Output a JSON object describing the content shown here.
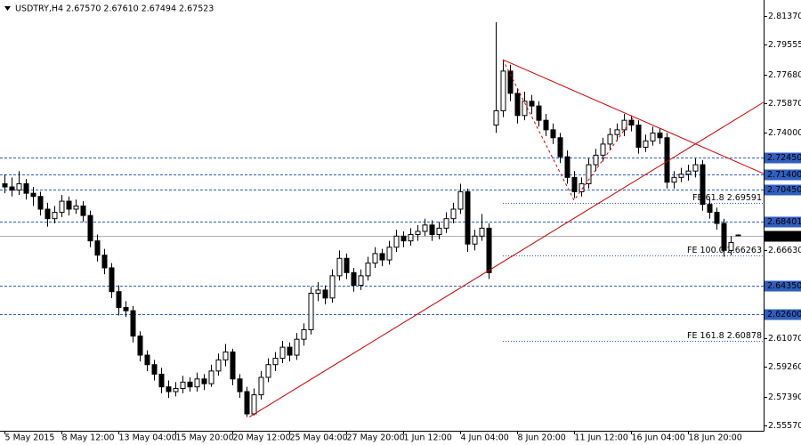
{
  "chart_data": {
    "type": "candlestick",
    "title": "USDTRY,H4  2.67570 2.67610 2.67494 2.67523",
    "bull_color": "#ffffff",
    "bear_color": "#000000",
    "edge_color": "#000000",
    "xlim": [
      -0.625,
      106.625
    ],
    "ylim": [
      2.55234,
      2.8238
    ],
    "xticks": [
      {
        "value": 0,
        "label": "5 May 2015"
      },
      {
        "value": 8,
        "label": "8 May 12:00"
      },
      {
        "value": 16,
        "label": "13 May 04:00"
      },
      {
        "value": 24,
        "label": "15 May 20:00"
      },
      {
        "value": 32,
        "label": "20 May 12:00"
      },
      {
        "value": 40,
        "label": "25 May 04:00"
      },
      {
        "value": 48,
        "label": "27 May 20:00"
      },
      {
        "value": 56,
        "label": "1 Jun 12:00"
      },
      {
        "value": 64,
        "label": "4 Jun 04:00"
      },
      {
        "value": 72,
        "label": "8 Jun 20:00"
      },
      {
        "value": 80,
        "label": "11 Jun 12:00"
      },
      {
        "value": 88,
        "label": "16 Jun 04:00"
      },
      {
        "value": 96,
        "label": "18 Jun 20:00"
      }
    ],
    "yticks": [
      {
        "value": 2.8137,
        "label": "2.81370"
      },
      2.79555,
      {
        "value": 2.7768,
        "label": "2.77680"
      },
      {
        "value": 2.7587,
        "label": "2.75870"
      },
      {
        "value": 2.74,
        "label": "2.74000"
      },
      {
        "value": 2.6663,
        "label": "2.66630"
      },
      {
        "value": 2.6107,
        "label": "2.61070"
      },
      {
        "value": 2.5926,
        "label": "2.59260"
      },
      {
        "value": 2.5739,
        "label": "2.57390"
      },
      {
        "value": 2.5557,
        "label": "2.55570"
      }
    ],
    "levels": [
      {
        "value": 2.7245,
        "label": "2.72450",
        "color": "#2f5fbf"
      },
      {
        "value": 2.714,
        "label": "2.71400",
        "color": "#2f5fbf"
      },
      {
        "value": 2.7045,
        "label": "2.70450",
        "color": "#2f5fbf"
      },
      {
        "value": 2.68401,
        "label": "2.68401",
        "color": "#2f5fbf"
      },
      {
        "value": 2.67523,
        "label": "2.67523",
        "color": "#000000"
      },
      {
        "value": 2.6435,
        "label": "2.64350",
        "color": "#2f5fbf"
      },
      {
        "value": 2.626,
        "label": "2.62600",
        "color": "#2f5fbf"
      }
    ],
    "annotations": [
      {
        "value": 2.69591,
        "label": "FE 61.8 2.69591"
      },
      {
        "value": 2.66263,
        "label": "FE 100.0 2.66263"
      },
      {
        "value": 2.60878,
        "label": "FE 161.8 2.60878"
      }
    ],
    "annotation_start": 70,
    "trend_lines": [
      {
        "points": [
          [
            34.4,
            2.561
          ],
          [
            106.6,
            2.7593
          ]
        ],
        "dashed": false,
        "color": "#d40000"
      },
      {
        "points": [
          [
            70,
            2.7862
          ],
          [
            106.6,
            2.7144
          ]
        ],
        "dashed": false,
        "color": "#d40000"
      },
      {
        "points": [
          [
            70,
            2.7862
          ],
          [
            80,
            2.6976
          ],
          [
            88.5,
            2.7509
          ]
        ],
        "dashed": true,
        "color": "#d40000"
      }
    ],
    "ohlc": [
      [
        2.708,
        2.714,
        2.702,
        2.706
      ],
      [
        2.706,
        2.712,
        2.7,
        2.704
      ],
      [
        2.704,
        2.716,
        2.701,
        2.708
      ],
      [
        2.708,
        2.711,
        2.698,
        2.702
      ],
      [
        2.702,
        2.706,
        2.694,
        2.7
      ],
      [
        2.7,
        2.703,
        2.688,
        2.692
      ],
      [
        2.692,
        2.696,
        2.681,
        2.686
      ],
      [
        2.686,
        2.694,
        2.683,
        2.69
      ],
      [
        2.69,
        2.701,
        2.687,
        2.697
      ],
      [
        2.697,
        2.7,
        2.688,
        2.692
      ],
      [
        2.692,
        2.698,
        2.689,
        2.694
      ],
      [
        2.694,
        2.697,
        2.684,
        2.688
      ],
      [
        2.688,
        2.691,
        2.668,
        2.672
      ],
      [
        2.672,
        2.676,
        2.659,
        2.663
      ],
      [
        2.663,
        2.667,
        2.651,
        2.655
      ],
      [
        2.655,
        2.658,
        2.636,
        2.64
      ],
      [
        2.64,
        2.644,
        2.625,
        2.63
      ],
      [
        2.63,
        2.634,
        2.624,
        2.628
      ],
      [
        2.628,
        2.631,
        2.608,
        2.612
      ],
      [
        2.612,
        2.615,
        2.596,
        2.6
      ],
      [
        2.6,
        2.603,
        2.59,
        2.594
      ],
      [
        2.594,
        2.597,
        2.584,
        2.588
      ],
      [
        2.588,
        2.592,
        2.576,
        2.58
      ],
      [
        2.58,
        2.584,
        2.573,
        2.577
      ],
      [
        2.577,
        2.583,
        2.574,
        2.579
      ],
      [
        2.579,
        2.587,
        2.576,
        2.583
      ],
      [
        2.583,
        2.586,
        2.577,
        2.58
      ],
      [
        2.58,
        2.589,
        2.577,
        2.585
      ],
      [
        2.585,
        2.588,
        2.578,
        2.582
      ],
      [
        2.582,
        2.594,
        2.58,
        2.59
      ],
      [
        2.59,
        2.601,
        2.587,
        2.597
      ],
      [
        2.597,
        2.607,
        2.593,
        2.602
      ],
      [
        2.602,
        2.604,
        2.581,
        2.585
      ],
      [
        2.585,
        2.588,
        2.573,
        2.577
      ],
      [
        2.577,
        2.58,
        2.561,
        2.563
      ],
      [
        2.563,
        2.579,
        2.562,
        2.575
      ],
      [
        2.575,
        2.59,
        2.572,
        2.586
      ],
      [
        2.586,
        2.598,
        2.583,
        2.594
      ],
      [
        2.594,
        2.602,
        2.59,
        2.598
      ],
      [
        2.598,
        2.609,
        2.595,
        2.605
      ],
      [
        2.605,
        2.608,
        2.596,
        2.6
      ],
      [
        2.6,
        2.614,
        2.597,
        2.61
      ],
      [
        2.61,
        2.62,
        2.606,
        2.616
      ],
      [
        2.616,
        2.643,
        2.613,
        2.639
      ],
      [
        2.639,
        2.646,
        2.634,
        2.641
      ],
      [
        2.641,
        2.644,
        2.632,
        2.636
      ],
      [
        2.636,
        2.654,
        2.633,
        2.65
      ],
      [
        2.65,
        2.666,
        2.647,
        2.661
      ],
      [
        2.661,
        2.664,
        2.648,
        2.652
      ],
      [
        2.652,
        2.655,
        2.64,
        2.644
      ],
      [
        2.644,
        2.654,
        2.641,
        2.65
      ],
      [
        2.65,
        2.662,
        2.647,
        2.658
      ],
      [
        2.658,
        2.668,
        2.655,
        2.664
      ],
      [
        2.664,
        2.667,
        2.656,
        2.66
      ],
      [
        2.66,
        2.672,
        2.657,
        2.668
      ],
      [
        2.668,
        2.679,
        2.665,
        2.675
      ],
      [
        2.675,
        2.678,
        2.668,
        2.672
      ],
      [
        2.672,
        2.68,
        2.669,
        2.676
      ],
      [
        2.676,
        2.682,
        2.672,
        2.678
      ],
      [
        2.678,
        2.686,
        2.675,
        2.682
      ],
      [
        2.682,
        2.685,
        2.672,
        2.676
      ],
      [
        2.676,
        2.684,
        2.673,
        2.68
      ],
      [
        2.68,
        2.69,
        2.677,
        2.686
      ],
      [
        2.686,
        2.696,
        2.683,
        2.692
      ],
      [
        2.692,
        2.708,
        2.689,
        2.703
      ],
      [
        2.703,
        2.705,
        2.665,
        2.67
      ],
      [
        2.67,
        2.679,
        2.666,
        2.675
      ],
      [
        2.675,
        2.689,
        2.672,
        2.68
      ],
      [
        2.68,
        2.683,
        2.648,
        2.652
      ],
      [
        2.745,
        2.8098,
        2.74,
        2.754
      ],
      [
        2.754,
        2.786,
        2.75,
        2.779
      ],
      [
        2.779,
        2.783,
        2.76,
        2.765
      ],
      [
        2.765,
        2.768,
        2.746,
        2.751
      ],
      [
        2.751,
        2.766,
        2.748,
        2.76
      ],
      [
        2.76,
        2.764,
        2.752,
        2.757
      ],
      [
        2.757,
        2.76,
        2.744,
        2.748
      ],
      [
        2.748,
        2.752,
        2.738,
        2.742
      ],
      [
        2.742,
        2.746,
        2.733,
        2.737
      ],
      [
        2.737,
        2.74,
        2.721,
        2.725
      ],
      [
        2.725,
        2.729,
        2.708,
        2.712
      ],
      [
        2.712,
        2.716,
        2.699,
        2.703
      ],
      [
        2.703,
        2.712,
        2.7,
        2.708
      ],
      [
        2.708,
        2.724,
        2.705,
        2.72
      ],
      [
        2.72,
        2.73,
        2.716,
        2.726
      ],
      [
        2.726,
        2.737,
        2.722,
        2.733
      ],
      [
        2.733,
        2.743,
        2.729,
        2.739
      ],
      [
        2.739,
        2.746,
        2.735,
        2.742
      ],
      [
        2.742,
        2.752,
        2.738,
        2.748
      ],
      [
        2.748,
        2.751,
        2.741,
        2.745
      ],
      [
        2.745,
        2.748,
        2.727,
        2.731
      ],
      [
        2.731,
        2.739,
        2.728,
        2.735
      ],
      [
        2.735,
        2.744,
        2.732,
        2.74
      ],
      [
        2.74,
        2.743,
        2.733,
        2.737
      ],
      [
        2.737,
        2.74,
        2.705,
        2.709
      ],
      [
        2.709,
        2.716,
        2.705,
        2.712
      ],
      [
        2.712,
        2.718,
        2.709,
        2.714
      ],
      [
        2.714,
        2.72,
        2.71,
        2.716
      ],
      [
        2.716,
        2.724,
        2.712,
        2.72
      ],
      [
        2.72,
        2.723,
        2.691,
        2.695
      ],
      [
        2.695,
        2.698,
        2.686,
        2.69
      ],
      [
        2.69,
        2.693,
        2.679,
        2.683
      ],
      [
        2.683,
        2.686,
        2.662,
        2.666
      ],
      [
        2.666,
        2.675,
        2.663,
        2.671
      ],
      [
        2.6757,
        2.6761,
        2.67494,
        2.67523
      ]
    ]
  }
}
